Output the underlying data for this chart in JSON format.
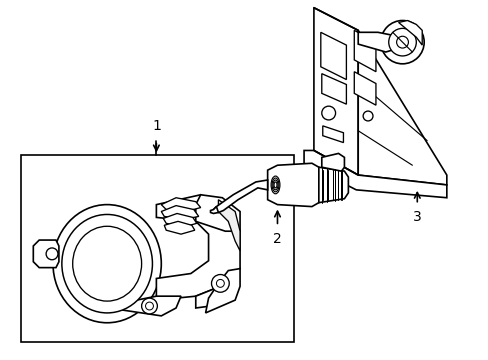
{
  "background_color": "#ffffff",
  "line_color": "#000000",
  "line_width": 1.2,
  "label1": "1",
  "label2": "2",
  "label3": "3",
  "fig_width": 4.89,
  "fig_height": 3.6,
  "dpi": 100
}
